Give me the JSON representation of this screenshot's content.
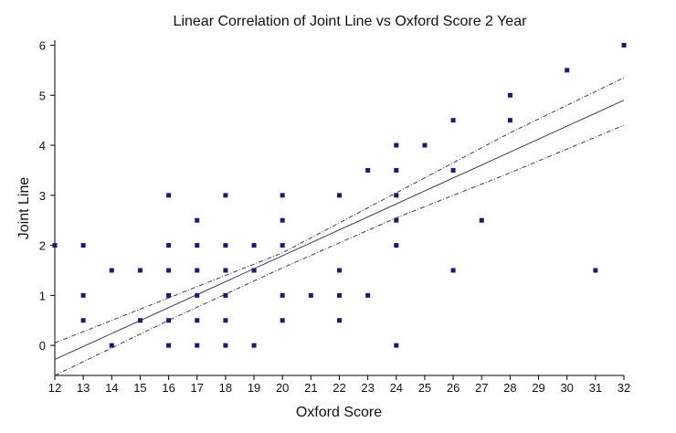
{
  "chart_data": {
    "type": "scatter",
    "title": "Linear Correlation of Joint Line vs Oxford Score 2 Year",
    "xlabel": "Oxford Score",
    "ylabel": "Joint Line",
    "xlim": [
      12,
      32
    ],
    "ylim": [
      -0.6,
      6.1
    ],
    "xticks": [
      "12",
      "13",
      "14",
      "15",
      "16",
      "17",
      "18",
      "19",
      "20",
      "21",
      "22",
      "23",
      "24",
      "25",
      "26",
      "27",
      "28",
      "29",
      "30",
      "31",
      "32"
    ],
    "yticks": [
      "0",
      "1",
      "2",
      "3",
      "4",
      "5",
      "6"
    ],
    "grid": false,
    "legend": "none",
    "marker_color": "#1a1a7a",
    "line_color": "#3a3a5a",
    "points": [
      [
        12,
        2
      ],
      [
        13,
        2
      ],
      [
        13,
        1
      ],
      [
        13,
        0.5
      ],
      [
        14,
        1.5
      ],
      [
        14,
        0
      ],
      [
        15,
        1.5
      ],
      [
        15,
        0.5
      ],
      [
        16,
        3
      ],
      [
        16,
        2
      ],
      [
        16,
        1.5
      ],
      [
        16,
        1
      ],
      [
        16,
        0.5
      ],
      [
        16,
        0
      ],
      [
        17,
        2.5
      ],
      [
        17,
        2
      ],
      [
        17,
        1.5
      ],
      [
        17,
        1
      ],
      [
        17,
        0.5
      ],
      [
        17,
        0
      ],
      [
        18,
        3
      ],
      [
        18,
        2
      ],
      [
        18,
        1.5
      ],
      [
        18,
        1
      ],
      [
        18,
        0.5
      ],
      [
        18,
        0
      ],
      [
        19,
        2
      ],
      [
        19,
        1.5
      ],
      [
        19,
        0
      ],
      [
        20,
        3
      ],
      [
        20,
        2.5
      ],
      [
        20,
        2
      ],
      [
        20,
        1
      ],
      [
        20,
        0.5
      ],
      [
        21,
        1
      ],
      [
        22,
        3
      ],
      [
        22,
        1.5
      ],
      [
        22,
        1
      ],
      [
        22,
        0.5
      ],
      [
        23,
        3.5
      ],
      [
        23,
        1
      ],
      [
        24,
        4
      ],
      [
        24,
        3.5
      ],
      [
        24,
        3
      ],
      [
        24,
        2.5
      ],
      [
        24,
        2
      ],
      [
        24,
        0
      ],
      [
        25,
        4
      ],
      [
        26,
        4.5
      ],
      [
        26,
        3.5
      ],
      [
        26,
        1.5
      ],
      [
        27,
        2.5
      ],
      [
        28,
        5
      ],
      [
        28,
        4.5
      ],
      [
        30,
        5.5
      ],
      [
        31,
        1.5
      ],
      [
        32,
        6
      ]
    ],
    "fit_line": [
      [
        12,
        -0.28
      ],
      [
        32,
        4.9
      ]
    ],
    "upper_band": [
      [
        12,
        0.05
      ],
      [
        16,
        0.95
      ],
      [
        20,
        1.85
      ],
      [
        24,
        3.05
      ],
      [
        28,
        4.25
      ],
      [
        32,
        5.35
      ]
    ],
    "lower_band": [
      [
        12,
        -0.6
      ],
      [
        16,
        0.5
      ],
      [
        20,
        1.55
      ],
      [
        24,
        2.55
      ],
      [
        28,
        3.45
      ],
      [
        32,
        4.4
      ]
    ]
  }
}
